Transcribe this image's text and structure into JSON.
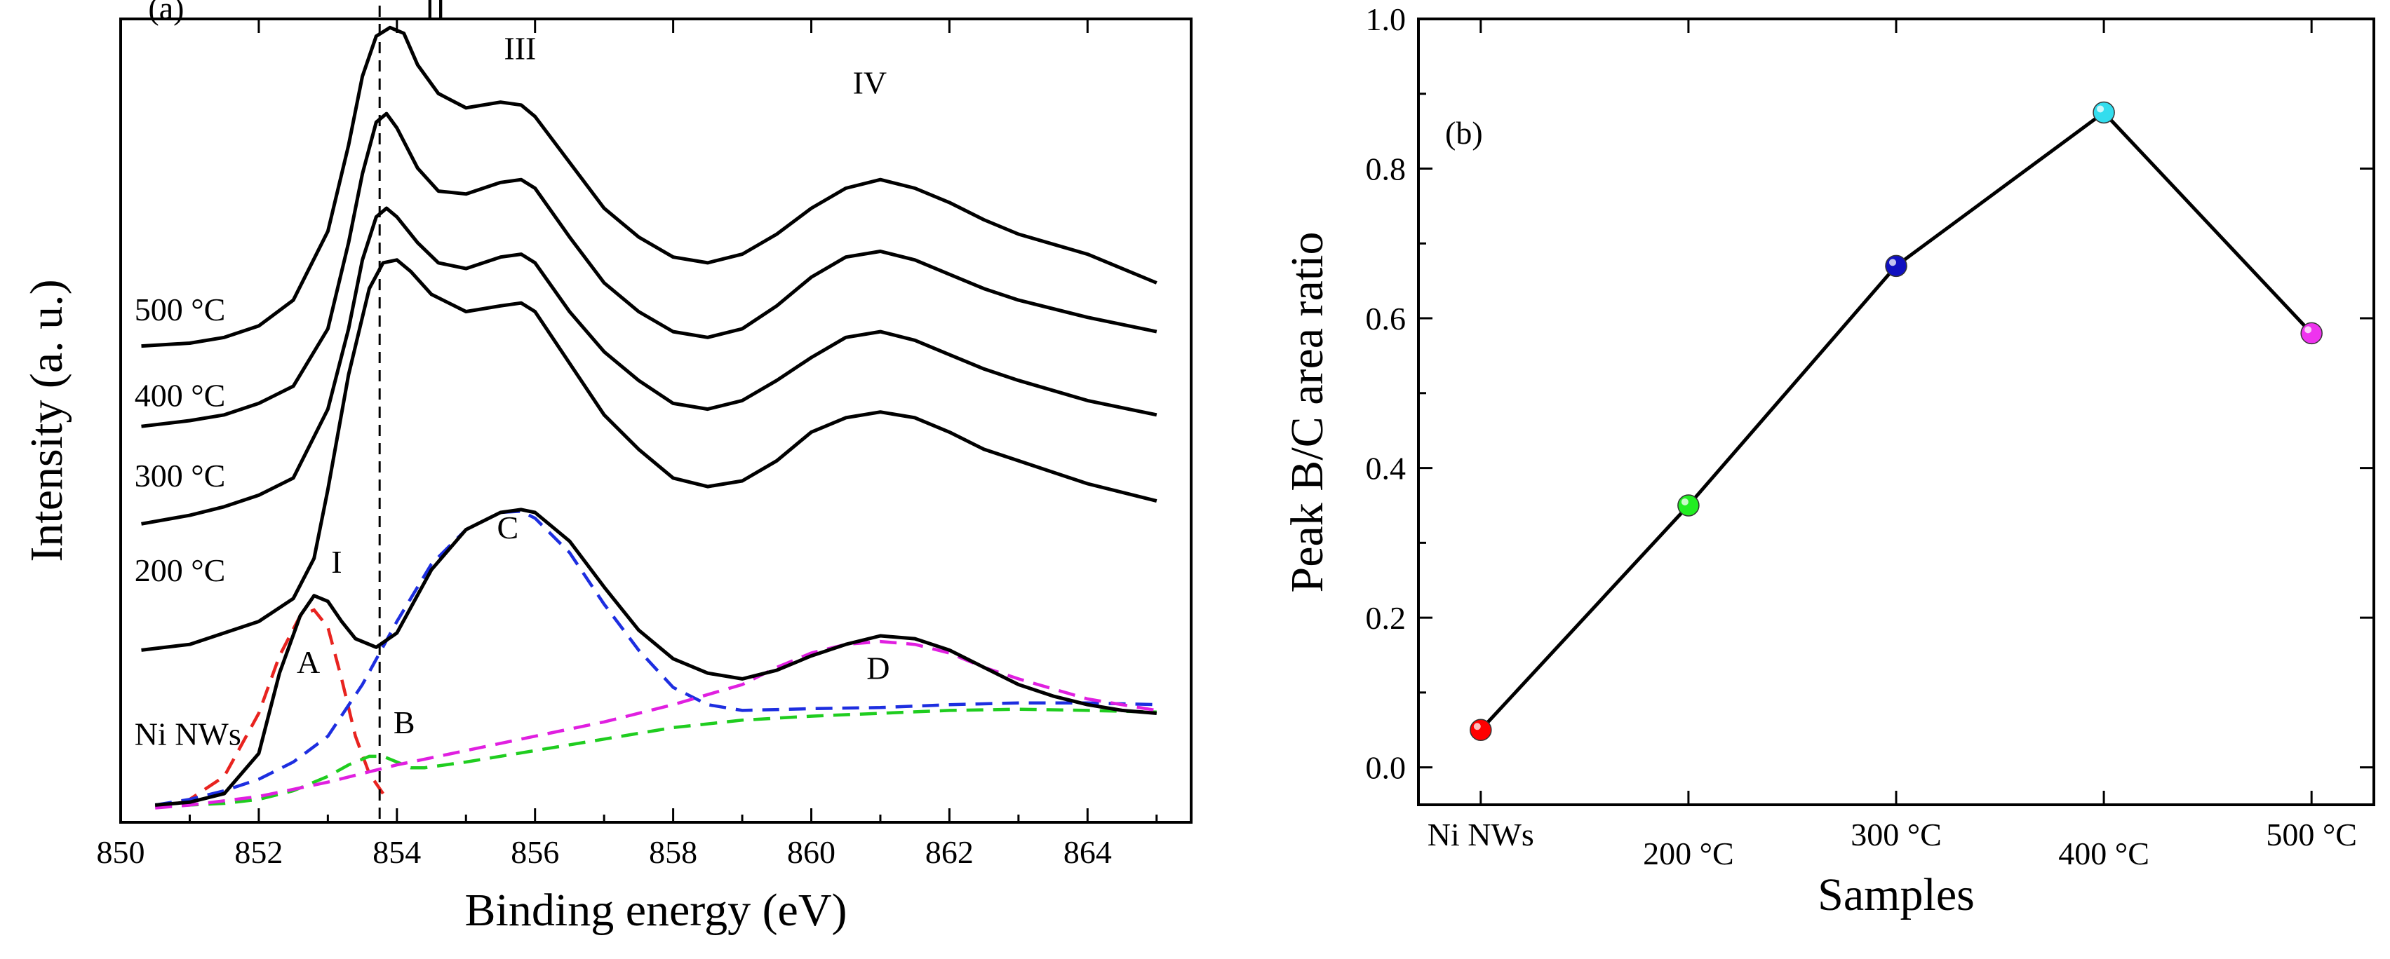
{
  "chart_data": [
    {
      "panel": "(a)",
      "type": "line",
      "xlabel": "Binding energy (eV)",
      "ylabel": "Intensity (a. u.)",
      "xlim": [
        850,
        865.5
      ],
      "ylim": [
        0,
        14
      ],
      "xticks": [
        850,
        852,
        854,
        856,
        858,
        860,
        862,
        864
      ],
      "xtick_labels": [
        "850",
        "852",
        "854",
        "856",
        "858",
        "860",
        "862",
        "864"
      ],
      "reference_line_x": 853.75,
      "series": [
        {
          "name": "Ni NWs",
          "label": "Ni NWs",
          "label_x": 850.2,
          "label_y": 1.35,
          "x": [
            850.5,
            851,
            851.5,
            852,
            852.3,
            852.6,
            852.8,
            853,
            853.2,
            853.4,
            853.7,
            854,
            854.5,
            855,
            855.5,
            855.8,
            856,
            856.5,
            857,
            857.5,
            858,
            858.5,
            859,
            859.5,
            860,
            860.5,
            861,
            861.5,
            862,
            862.5,
            863,
            863.5,
            864,
            864.5,
            865
          ],
          "y": [
            0.3,
            0.35,
            0.5,
            1.2,
            2.6,
            3.6,
            3.95,
            3.85,
            3.5,
            3.2,
            3.05,
            3.3,
            4.4,
            5.1,
            5.4,
            5.45,
            5.4,
            4.9,
            4.1,
            3.35,
            2.85,
            2.6,
            2.5,
            2.65,
            2.9,
            3.1,
            3.25,
            3.2,
            3.0,
            2.7,
            2.4,
            2.2,
            2.05,
            1.95,
            1.9
          ]
        },
        {
          "name": "200 °C",
          "label": "200 °C",
          "label_x": 850.2,
          "label_y": 4.2,
          "x": [
            850.3,
            851,
            851.5,
            852,
            852.5,
            852.8,
            853,
            853.3,
            853.6,
            853.8,
            854,
            854.2,
            854.5,
            855,
            855.5,
            855.8,
            856,
            856.5,
            857,
            857.5,
            858,
            858.5,
            859,
            859.5,
            860,
            860.5,
            861,
            861.5,
            862,
            862.5,
            863,
            864,
            865
          ],
          "y": [
            3.0,
            3.1,
            3.3,
            3.5,
            3.9,
            4.6,
            5.8,
            7.8,
            9.3,
            9.75,
            9.8,
            9.6,
            9.2,
            8.9,
            9.0,
            9.05,
            8.9,
            8.0,
            7.1,
            6.5,
            6.0,
            5.85,
            5.95,
            6.3,
            6.8,
            7.05,
            7.15,
            7.05,
            6.8,
            6.5,
            6.3,
            5.9,
            5.6
          ]
        },
        {
          "name": "300 °C",
          "label": "300 °C",
          "label_x": 850.2,
          "label_y": 5.85,
          "x": [
            850.3,
            851,
            851.5,
            852,
            852.5,
            853,
            853.3,
            853.5,
            853.7,
            853.85,
            854,
            854.3,
            854.6,
            855,
            855.5,
            855.8,
            856,
            856.5,
            857,
            857.5,
            858,
            858.5,
            859,
            859.5,
            860,
            860.5,
            861,
            861.5,
            862,
            862.5,
            863,
            864,
            865
          ],
          "y": [
            5.2,
            5.35,
            5.5,
            5.7,
            6.0,
            7.2,
            8.6,
            9.8,
            10.55,
            10.7,
            10.55,
            10.1,
            9.75,
            9.65,
            9.85,
            9.9,
            9.75,
            8.9,
            8.2,
            7.7,
            7.3,
            7.2,
            7.35,
            7.7,
            8.1,
            8.45,
            8.55,
            8.4,
            8.15,
            7.9,
            7.7,
            7.35,
            7.1
          ]
        },
        {
          "name": "400 °C",
          "label": "400 °C",
          "label_x": 850.2,
          "label_y": 7.25,
          "x": [
            850.3,
            851,
            851.5,
            852,
            852.5,
            853,
            853.3,
            853.5,
            853.7,
            853.85,
            854,
            854.3,
            854.6,
            855,
            855.5,
            855.8,
            856,
            856.5,
            857,
            857.5,
            858,
            858.5,
            859,
            859.5,
            860,
            860.5,
            861,
            861.5,
            862,
            862.5,
            863,
            864,
            865
          ],
          "y": [
            6.9,
            7.0,
            7.1,
            7.3,
            7.6,
            8.6,
            10.1,
            11.3,
            12.2,
            12.35,
            12.1,
            11.4,
            11.0,
            10.95,
            11.15,
            11.2,
            11.05,
            10.2,
            9.4,
            8.9,
            8.55,
            8.45,
            8.6,
            9.0,
            9.5,
            9.85,
            9.95,
            9.8,
            9.55,
            9.3,
            9.1,
            8.8,
            8.55
          ]
        },
        {
          "name": "500 °C",
          "label": "500 °C",
          "label_x": 850.2,
          "label_y": 8.75,
          "x": [
            850.3,
            851,
            851.5,
            852,
            852.5,
            853,
            853.3,
            853.5,
            853.7,
            853.9,
            854.1,
            854.3,
            854.6,
            855,
            855.5,
            855.8,
            856,
            856.5,
            857,
            857.5,
            858,
            858.5,
            859,
            859.5,
            860,
            860.5,
            861,
            861.5,
            862,
            862.5,
            863,
            864,
            865
          ],
          "y": [
            8.3,
            8.35,
            8.45,
            8.65,
            9.1,
            10.3,
            11.8,
            13.0,
            13.7,
            13.85,
            13.75,
            13.2,
            12.7,
            12.45,
            12.55,
            12.5,
            12.3,
            11.5,
            10.7,
            10.2,
            9.85,
            9.75,
            9.9,
            10.25,
            10.7,
            11.05,
            11.2,
            11.05,
            10.8,
            10.5,
            10.25,
            9.9,
            9.4
          ]
        }
      ],
      "fit_components": [
        {
          "name": "A",
          "color": "#e8231f",
          "x": [
            850.5,
            851,
            851.5,
            852,
            852.3,
            852.6,
            852.8,
            853,
            853.2,
            853.4,
            853.6,
            853.8
          ],
          "y": [
            0.28,
            0.4,
            0.8,
            1.9,
            2.9,
            3.6,
            3.7,
            3.4,
            2.5,
            1.5,
            0.85,
            0.5
          ]
        },
        {
          "name": "B",
          "color": "#1fcd1f",
          "x": [
            850.5,
            851,
            851.5,
            852,
            852.5,
            853,
            853.3,
            853.6,
            853.8,
            854,
            854.2,
            854.4,
            854.7,
            855,
            856,
            857,
            858,
            859,
            860,
            861,
            862,
            863,
            864,
            865
          ],
          "y": [
            0.28,
            0.3,
            0.33,
            0.4,
            0.55,
            0.8,
            1.0,
            1.15,
            1.15,
            1.05,
            0.95,
            0.95,
            1.0,
            1.05,
            1.25,
            1.45,
            1.65,
            1.78,
            1.85,
            1.9,
            1.95,
            1.97,
            1.95,
            1.92
          ]
        },
        {
          "name": "C",
          "color": "#1d2ee0",
          "x": [
            850.5,
            851,
            851.5,
            852,
            852.5,
            853,
            853.5,
            854,
            854.5,
            855,
            855.5,
            855.8,
            856,
            856.5,
            857,
            857.5,
            858,
            858.5,
            859,
            860,
            861,
            862,
            863,
            864,
            865
          ],
          "y": [
            0.3,
            0.4,
            0.55,
            0.75,
            1.05,
            1.5,
            2.4,
            3.5,
            4.5,
            5.1,
            5.4,
            5.42,
            5.3,
            4.7,
            3.8,
            3.0,
            2.35,
            2.05,
            1.95,
            1.98,
            2.0,
            2.05,
            2.08,
            2.08,
            2.05
          ]
        },
        {
          "name": "D",
          "color": "#e01fe0",
          "x": [
            850.5,
            851,
            852,
            853,
            854,
            855,
            856,
            857,
            858,
            859,
            859.5,
            860,
            860.5,
            861,
            861.5,
            862,
            862.5,
            863,
            864,
            865
          ],
          "y": [
            0.25,
            0.3,
            0.45,
            0.7,
            1.0,
            1.25,
            1.5,
            1.75,
            2.05,
            2.4,
            2.7,
            2.95,
            3.1,
            3.15,
            3.1,
            2.95,
            2.7,
            2.5,
            2.15,
            1.95
          ]
        }
      ],
      "annotations": [
        {
          "text": "I",
          "x": 853.05,
          "y": 4.35
        },
        {
          "text": "II",
          "x": 854.4,
          "y": 14.0
        },
        {
          "text": "III",
          "x": 855.55,
          "y": 13.3
        },
        {
          "text": "IV",
          "x": 860.6,
          "y": 12.7
        },
        {
          "text": "A",
          "x": 852.55,
          "y": 2.6
        },
        {
          "text": "B",
          "x": 853.95,
          "y": 1.55
        },
        {
          "text": "C",
          "x": 855.45,
          "y": 4.95
        },
        {
          "text": "D",
          "x": 860.8,
          "y": 2.5
        },
        {
          "text": "(a)",
          "x": 850.4,
          "y": 14.0
        }
      ]
    },
    {
      "panel": "(b)",
      "type": "line",
      "xlabel": "Samples",
      "ylabel": "Peak B/C area ratio",
      "categories": [
        "Ni NWs",
        "200 °C",
        "300 °C",
        "400 °C",
        "500 °C"
      ],
      "values": [
        0.05,
        0.35,
        0.67,
        0.875,
        0.58
      ],
      "marker_colors": [
        "#ff0000",
        "#22ee22",
        "#1010c0",
        "#33ddee",
        "#ee33ee"
      ],
      "xlim": [
        -0.3,
        4.3
      ],
      "ylim": [
        -0.05,
        1.0
      ],
      "yticks": [
        0.0,
        0.2,
        0.4,
        0.6,
        0.8,
        1.0
      ],
      "ytick_labels": [
        "0.0",
        "0.2",
        "0.4",
        "0.6",
        "0.8",
        "1.0"
      ],
      "panel_label": "(b)"
    }
  ]
}
